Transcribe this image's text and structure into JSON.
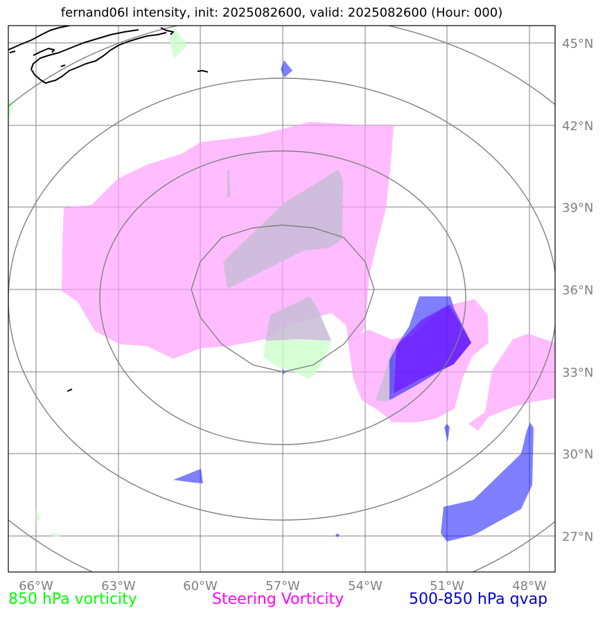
{
  "title": "fernand06l intensity, init: 2025082600, valid: 2025082600 (Hour: 000)",
  "map": {
    "lon_ticks": [
      "66°W",
      "63°W",
      "60°W",
      "57°W",
      "54°W",
      "51°W",
      "48°W"
    ],
    "lat_ticks": [
      "45°N",
      "42°N",
      "39°N",
      "36°N",
      "33°N",
      "30°N",
      "27°N"
    ],
    "lon_range": [
      -67,
      -47
    ],
    "lat_range": [
      25.8,
      45.7
    ],
    "center": {
      "lon": -57,
      "lat": 36
    },
    "range_rings_deg": [
      3,
      5.5,
      8,
      10.7
    ]
  },
  "legend": {
    "vort850": {
      "label": "850 hPa vorticity",
      "color": "#00ff00"
    },
    "steering": {
      "label": "Steering Vorticity",
      "color": "#ff00ff"
    },
    "qvap": {
      "label": "500-850 hPa qvap",
      "color": "#0000cc"
    }
  },
  "colors": {
    "vort850_fill": "#ccffcc",
    "steering_fill": "#ff99ff",
    "qvap_fill": "#0000ff",
    "grid": "#808080",
    "ring": "#808080",
    "coast": "#000000"
  }
}
